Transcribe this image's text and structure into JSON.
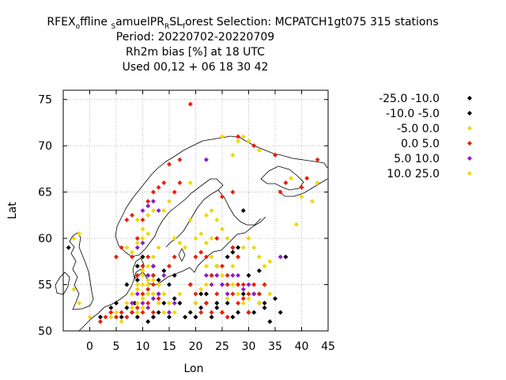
{
  "title": {
    "line1": {
      "p1": "RFEX",
      "s1": "o",
      "p2": "ffline ",
      "s2": "S",
      "p3": "amuelPR",
      "s3": "R",
      "p4": "SL",
      "s4": "f",
      "p5": "orest   Selection: MCPATCH1gt075    315 stations"
    },
    "line2": "Period: 20220702-20220709",
    "line3": "Rh2m bias [%] at  18 UTC",
    "line4": "Used  00,12  + 06 18 30 42"
  },
  "chart_data": {
    "type": "scatter",
    "xlabel": "Lon",
    "ylabel": "Lat",
    "xlim": [
      -5,
      45
    ],
    "ylim": [
      50,
      76
    ],
    "xticks": [
      0,
      5,
      10,
      15,
      20,
      25,
      30,
      35,
      40,
      45
    ],
    "yticks": [
      50,
      55,
      60,
      65,
      70,
      75
    ],
    "grid": true,
    "legend_position": "right",
    "series": [
      {
        "name": "-25.0 -10.0",
        "color": "#000000",
        "points": [
          [
            -4,
            59
          ],
          [
            2,
            51.5
          ],
          [
            4,
            52.5
          ],
          [
            5,
            53
          ],
          [
            6,
            51.5
          ],
          [
            7,
            52.5
          ],
          [
            8,
            52
          ],
          [
            9,
            51.5
          ],
          [
            8.5,
            53
          ],
          [
            11,
            51
          ],
          [
            12,
            51.5
          ],
          [
            13,
            52
          ],
          [
            15,
            51.5
          ],
          [
            16,
            53.5
          ],
          [
            12,
            56
          ],
          [
            13,
            55.5
          ],
          [
            9,
            57
          ],
          [
            14,
            56.5
          ],
          [
            18,
            51.5
          ],
          [
            19,
            52
          ],
          [
            20,
            51.5
          ],
          [
            21,
            52.5
          ],
          [
            22,
            53
          ],
          [
            23,
            51.5
          ],
          [
            24,
            52.5
          ],
          [
            26,
            53
          ],
          [
            27,
            51.5
          ],
          [
            28,
            52
          ],
          [
            29,
            54
          ],
          [
            30,
            52
          ],
          [
            31,
            52
          ],
          [
            32,
            53
          ],
          [
            33,
            52.5
          ],
          [
            34,
            51
          ],
          [
            35,
            53.5
          ],
          [
            36,
            52
          ],
          [
            37,
            58
          ],
          [
            30,
            56
          ],
          [
            29,
            63
          ],
          [
            27,
            59
          ],
          [
            24,
            53
          ],
          [
            25,
            55
          ],
          [
            21,
            54
          ],
          [
            32,
            56.5
          ],
          [
            33,
            55
          ]
        ]
      },
      {
        "name": "-10.0 -5.0",
        "color": "#000000",
        "points": [
          [
            10,
            58
          ],
          [
            11,
            56
          ],
          [
            12,
            57
          ],
          [
            13,
            54
          ],
          [
            14,
            53
          ],
          [
            15,
            55
          ],
          [
            16,
            56
          ],
          [
            17,
            53
          ],
          [
            20,
            53
          ],
          [
            22,
            54
          ],
          [
            25,
            52
          ],
          [
            26,
            58
          ],
          [
            27,
            58.5
          ],
          [
            28,
            59
          ],
          [
            24,
            57
          ],
          [
            23,
            56
          ],
          [
            19,
            55
          ],
          [
            31,
            54
          ],
          [
            32,
            54
          ],
          [
            33,
            53
          ],
          [
            7,
            55
          ],
          [
            9,
            55.5
          ]
        ]
      },
      {
        "name": "-5.0 0.0",
        "color": "#f0d800",
        "points": [
          [
            -3,
            60
          ],
          [
            -2,
            60.5
          ],
          [
            -3,
            54.5
          ],
          [
            -2,
            53
          ],
          [
            0,
            51.5
          ],
          [
            2,
            51
          ],
          [
            4,
            51.5
          ],
          [
            5,
            52
          ],
          [
            6,
            51
          ],
          [
            7,
            53
          ],
          [
            8,
            54
          ],
          [
            9,
            55
          ],
          [
            10,
            54
          ],
          [
            10,
            56
          ],
          [
            11,
            55
          ],
          [
            12,
            54
          ],
          [
            13,
            53
          ],
          [
            14,
            52
          ],
          [
            11,
            57
          ],
          [
            12,
            58
          ],
          [
            13,
            59
          ],
          [
            8,
            58.5
          ],
          [
            7,
            59
          ],
          [
            9,
            59.5
          ],
          [
            10,
            60
          ],
          [
            11,
            60.5
          ],
          [
            10,
            61
          ],
          [
            9,
            62
          ],
          [
            11,
            62.5
          ],
          [
            12,
            63
          ],
          [
            14,
            63
          ],
          [
            15,
            64
          ],
          [
            16,
            60
          ],
          [
            17,
            59.5
          ],
          [
            18,
            59
          ],
          [
            19,
            62
          ],
          [
            20,
            60
          ],
          [
            21,
            60.5
          ],
          [
            22,
            59.5
          ],
          [
            23,
            60
          ],
          [
            24,
            62
          ],
          [
            25,
            61
          ],
          [
            26,
            60
          ],
          [
            27,
            57
          ],
          [
            28,
            58
          ],
          [
            29,
            59
          ],
          [
            30,
            60
          ],
          [
            31,
            59
          ],
          [
            32,
            58
          ],
          [
            33,
            57
          ],
          [
            34,
            57.5
          ],
          [
            33,
            55
          ],
          [
            34,
            54
          ],
          [
            32,
            53
          ],
          [
            25,
            56
          ],
          [
            24,
            57
          ],
          [
            23,
            58
          ],
          [
            22,
            57
          ],
          [
            25,
            71
          ],
          [
            27,
            69
          ],
          [
            28,
            70.5
          ],
          [
            29,
            71
          ],
          [
            30,
            70.5
          ],
          [
            31,
            70
          ],
          [
            32,
            69.5
          ],
          [
            19,
            66
          ],
          [
            22,
            62.5
          ],
          [
            23,
            63
          ],
          [
            38,
            66.5
          ],
          [
            40,
            64.5
          ],
          [
            43,
            66
          ],
          [
            42,
            64
          ],
          [
            39,
            61.5
          ],
          [
            20,
            53
          ],
          [
            21,
            54.5
          ],
          [
            22,
            55
          ],
          [
            24,
            54
          ],
          [
            26,
            53.5
          ],
          [
            27,
            55
          ],
          [
            28,
            54
          ],
          [
            29,
            53
          ],
          [
            30,
            53.5
          ]
        ]
      },
      {
        "name": "0.0 5.0",
        "color": "#e8200c",
        "points": [
          [
            2,
            51
          ],
          [
            3,
            51.5
          ],
          [
            4,
            52
          ],
          [
            5,
            51.5
          ],
          [
            6,
            52
          ],
          [
            7,
            51.5
          ],
          [
            8,
            52
          ],
          [
            9,
            52.5
          ],
          [
            10,
            52
          ],
          [
            11,
            53
          ],
          [
            12,
            52
          ],
          [
            13,
            53.5
          ],
          [
            10,
            54
          ],
          [
            11,
            54.5
          ],
          [
            12,
            55
          ],
          [
            9,
            56
          ],
          [
            10,
            57
          ],
          [
            11,
            58
          ],
          [
            12,
            56
          ],
          [
            8,
            58
          ],
          [
            9,
            60
          ],
          [
            10,
            62
          ],
          [
            11,
            64
          ],
          [
            12,
            65
          ],
          [
            13,
            65.5
          ],
          [
            14,
            66
          ],
          [
            15,
            68
          ],
          [
            17,
            68.5
          ],
          [
            19,
            74.5
          ],
          [
            20,
            58
          ],
          [
            21,
            58.5
          ],
          [
            22,
            58
          ],
          [
            24,
            60
          ],
          [
            25,
            57
          ],
          [
            26,
            56
          ],
          [
            27,
            59
          ],
          [
            28,
            58
          ],
          [
            29,
            55
          ],
          [
            30,
            54
          ],
          [
            31,
            55
          ],
          [
            32,
            54
          ],
          [
            33,
            55
          ],
          [
            25,
            52
          ],
          [
            26,
            51.5
          ],
          [
            27,
            54
          ],
          [
            28,
            53
          ],
          [
            29,
            53.5
          ],
          [
            30,
            52
          ],
          [
            19,
            55
          ],
          [
            20,
            54
          ],
          [
            21,
            52
          ],
          [
            22,
            53
          ],
          [
            23,
            52
          ],
          [
            25,
            64.5
          ],
          [
            27,
            65
          ],
          [
            28,
            71
          ],
          [
            31,
            70
          ],
          [
            35,
            69
          ],
          [
            36,
            65
          ],
          [
            37,
            66
          ],
          [
            40,
            65.5
          ],
          [
            41,
            66.5
          ],
          [
            43,
            68.5
          ],
          [
            16,
            65
          ],
          [
            17,
            66
          ],
          [
            6,
            59
          ],
          [
            5,
            58
          ],
          [
            7,
            62
          ],
          [
            8,
            62.5
          ],
          [
            23,
            56
          ],
          [
            24,
            54
          ],
          [
            26,
            55
          ],
          [
            28,
            55
          ],
          [
            15,
            57
          ],
          [
            16,
            58
          ]
        ]
      },
      {
        "name": "5.0 10.0",
        "color": "#8c1cd2",
        "points": [
          [
            10,
            63
          ],
          [
            11,
            63.5
          ],
          [
            12,
            64
          ],
          [
            13,
            63
          ],
          [
            9,
            59
          ],
          [
            10,
            59.5
          ],
          [
            10,
            53
          ],
          [
            11,
            52.5
          ],
          [
            12,
            53.5
          ],
          [
            13,
            54
          ],
          [
            11,
            56
          ],
          [
            12,
            57
          ],
          [
            13,
            55
          ],
          [
            15,
            52
          ],
          [
            16,
            53
          ],
          [
            22,
            56
          ],
          [
            23,
            55
          ],
          [
            24,
            56
          ],
          [
            25,
            55
          ],
          [
            26,
            54
          ],
          [
            27,
            56
          ],
          [
            28,
            56
          ],
          [
            29,
            54.5
          ],
          [
            30,
            55
          ],
          [
            31,
            54
          ],
          [
            36,
            58
          ],
          [
            22,
            68.5
          ],
          [
            14,
            56
          ],
          [
            9,
            54
          ],
          [
            8,
            53
          ]
        ]
      },
      {
        "name": "10.0 25.0",
        "color": "#f0d800",
        "points": [
          [
            8,
            54
          ],
          [
            9,
            54.5
          ],
          [
            10,
            55
          ],
          [
            11,
            55.5
          ],
          [
            12,
            54
          ],
          [
            9,
            53
          ],
          [
            10,
            53.5
          ],
          [
            11,
            54
          ],
          [
            12,
            55.5
          ],
          [
            13,
            55
          ],
          [
            8,
            52.5
          ],
          [
            9,
            52
          ],
          [
            10,
            52.5
          ],
          [
            14,
            54
          ],
          [
            15,
            53
          ],
          [
            16,
            52
          ],
          [
            17,
            54
          ],
          [
            10,
            56.5
          ]
        ]
      }
    ]
  }
}
